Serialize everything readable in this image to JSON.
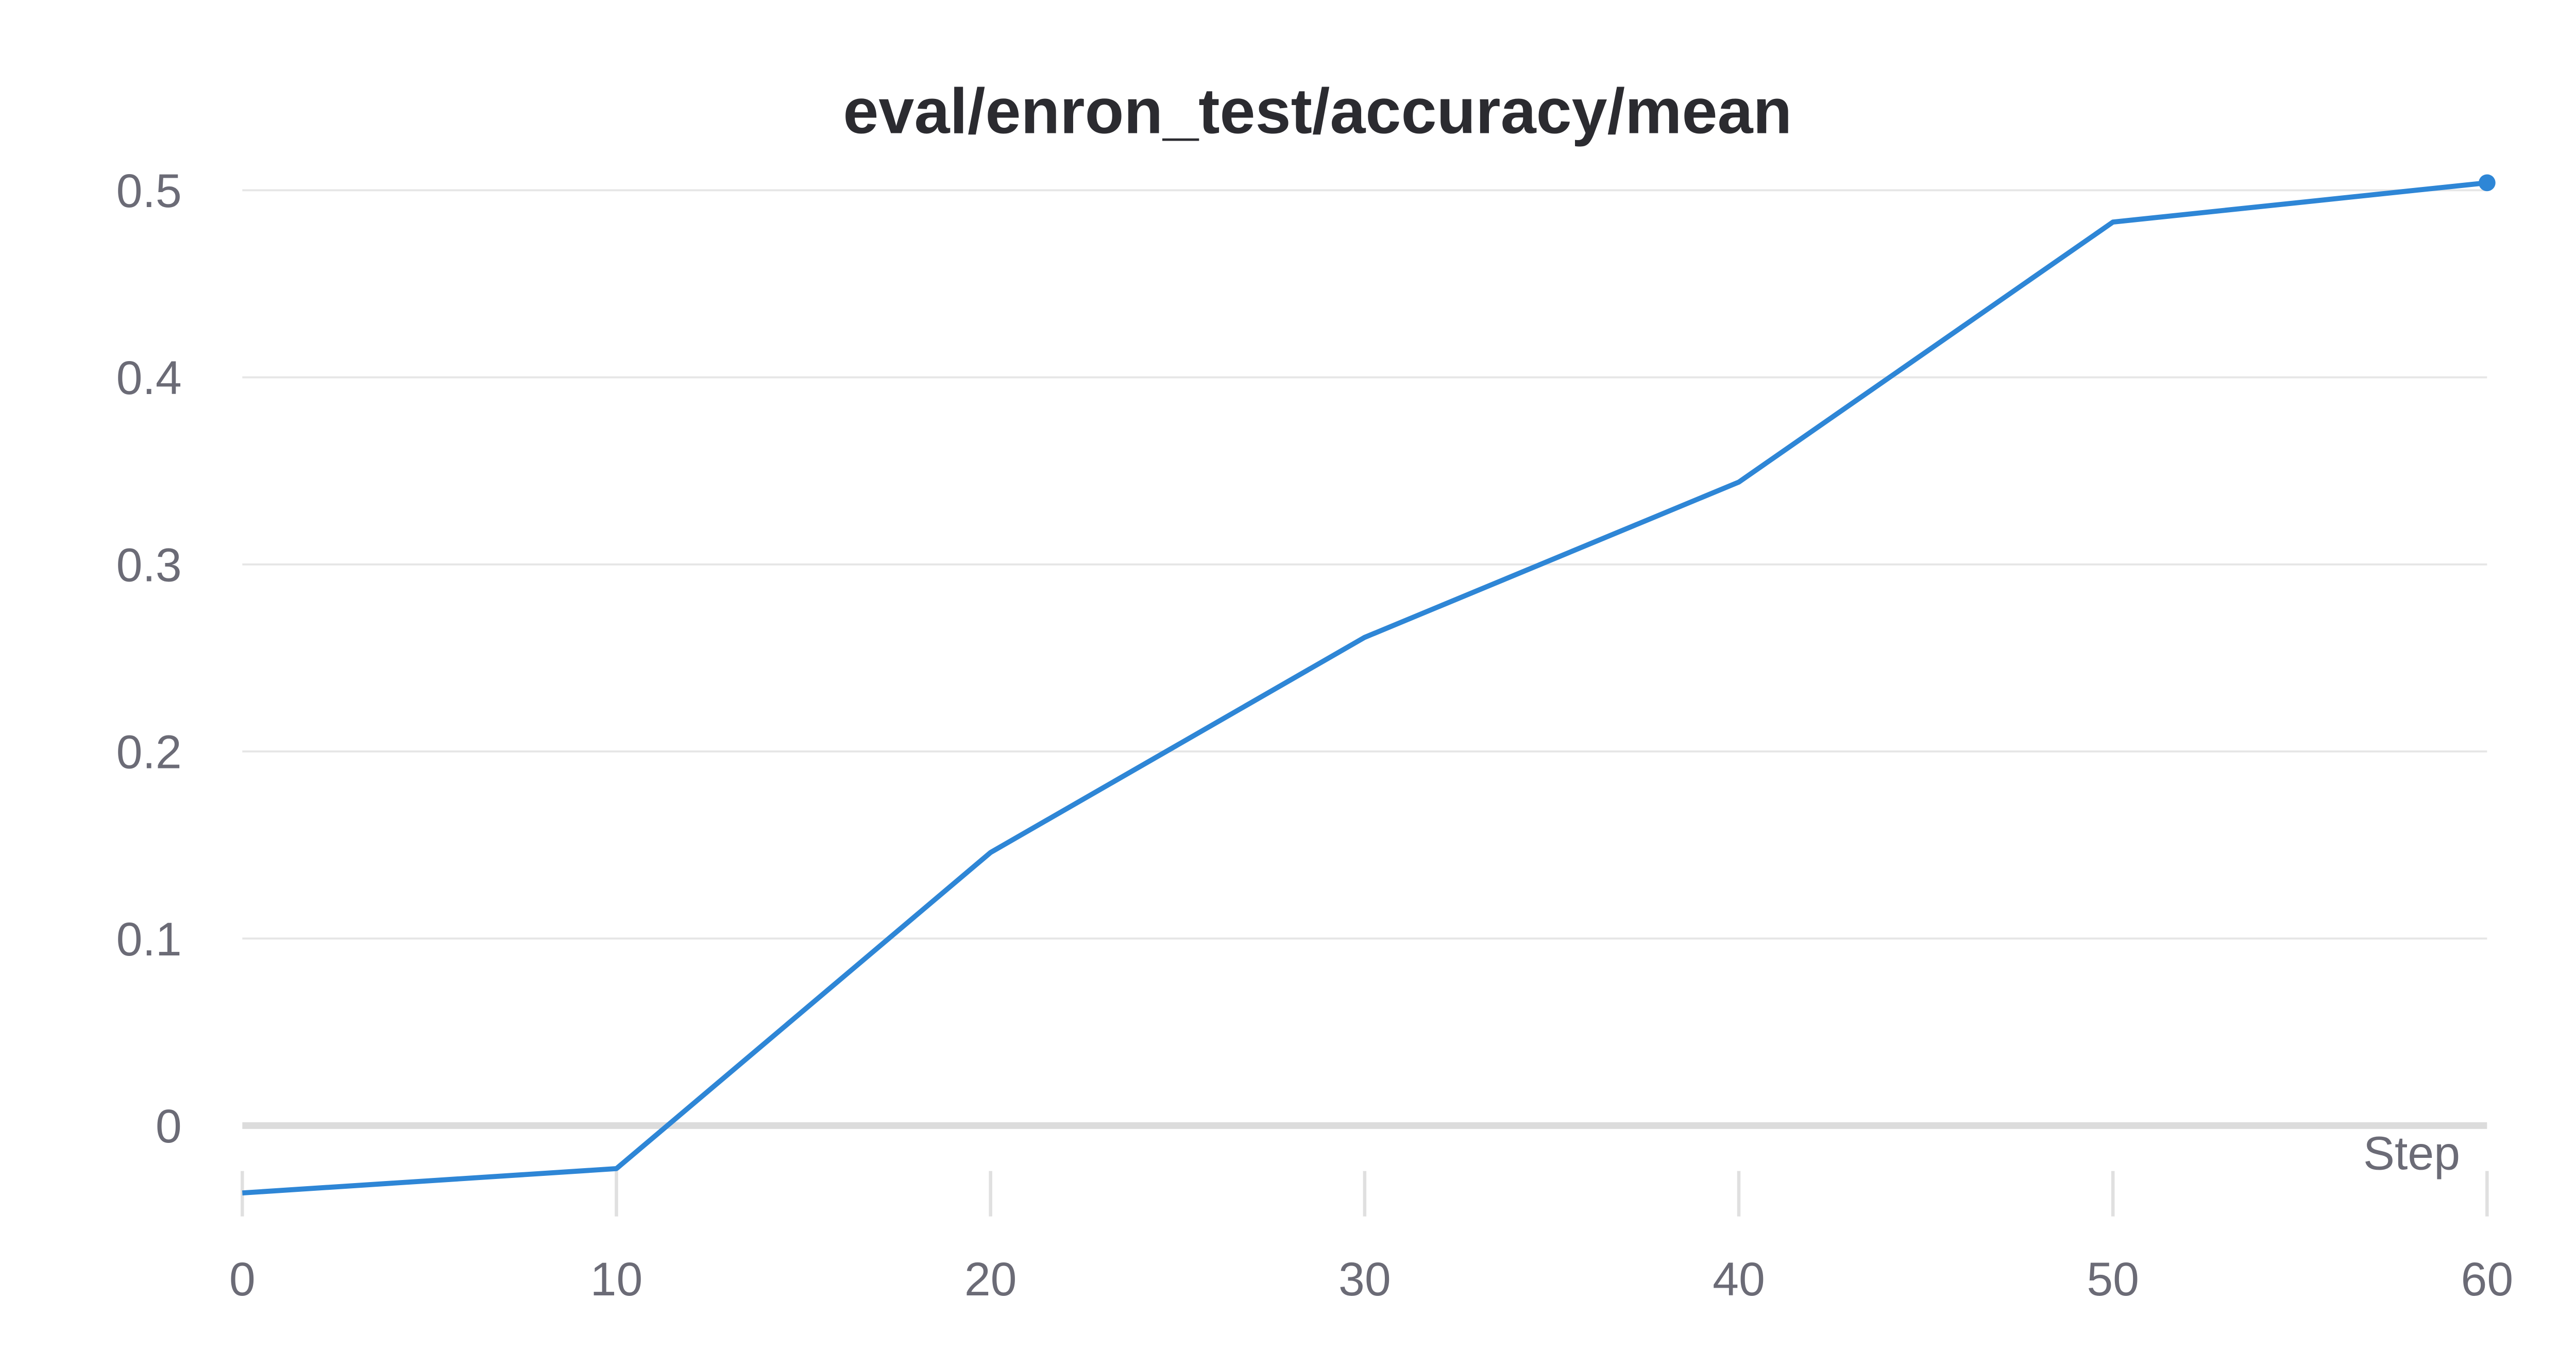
{
  "chart_data": {
    "type": "line",
    "title": "eval/enron_test/accuracy/mean",
    "xlabel": "Step",
    "ylabel": "",
    "xlim": [
      0,
      60
    ],
    "ylim": [
      -0.05,
      0.5
    ],
    "x_ticks": [
      0,
      10,
      20,
      30,
      40,
      50,
      60
    ],
    "y_ticks": [
      0,
      0.1,
      0.2,
      0.3,
      0.4,
      0.5
    ],
    "x_tick_labels": [
      "0",
      "10",
      "20",
      "30",
      "40",
      "50",
      "60"
    ],
    "y_tick_labels": [
      "0",
      "0.1",
      "0.2",
      "0.3",
      "0.4",
      "0.5"
    ],
    "grid": true,
    "series": [
      {
        "color": "#2e86d6",
        "x": [
          0,
          10,
          20,
          30,
          40,
          50,
          60
        ],
        "y": [
          -0.036,
          -0.023,
          0.146,
          0.261,
          0.344,
          0.483,
          0.504
        ]
      }
    ]
  }
}
